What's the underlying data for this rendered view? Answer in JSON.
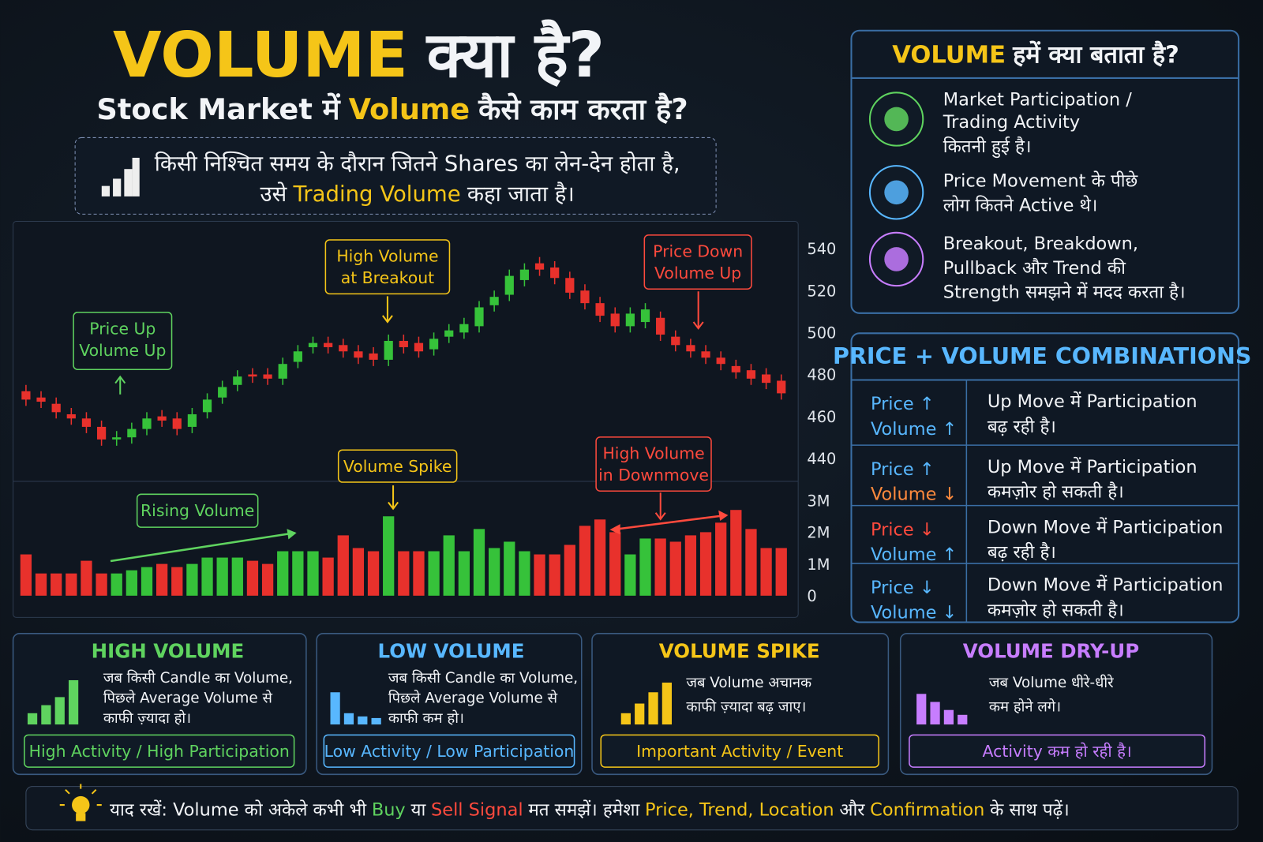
{
  "header": {
    "title": [
      "VOLUME",
      "क्या है?"
    ],
    "subtitle": [
      "Stock Market में",
      "Volume",
      "कैसे काम करता है?"
    ],
    "definition": [
      [
        "किसी निश्चित समय के दौरान जितने Shares का लेन-देन होता है,"
      ],
      [
        "उसे",
        "Trading Volume",
        "कहा जाता है।"
      ]
    ]
  },
  "chart_data": {
    "type": "candlestick",
    "open": [
      472,
      469,
      466,
      461,
      459,
      455,
      449,
      450,
      454,
      460,
      459,
      455,
      462,
      469,
      475,
      480,
      480,
      478,
      486,
      493,
      495,
      494,
      491,
      490,
      487,
      496,
      495,
      492,
      498,
      500,
      503,
      513,
      518,
      525,
      533,
      531,
      526,
      520,
      514,
      509,
      503,
      505,
      507,
      498,
      494,
      491,
      488,
      484,
      482,
      480,
      477
    ],
    "high": [
      475,
      472,
      469,
      464,
      462,
      458,
      453,
      457,
      462,
      463,
      462,
      464,
      471,
      477,
      482,
      483,
      483,
      488,
      494,
      498,
      498,
      497,
      494,
      493,
      499,
      499,
      498,
      500,
      504,
      507,
      515,
      520,
      530,
      533,
      536,
      534,
      529,
      523,
      517,
      512,
      512,
      514,
      510,
      501,
      497,
      494,
      491,
      487,
      485,
      483,
      480
    ],
    "low": [
      465,
      464,
      459,
      456,
      452,
      446,
      446,
      447,
      451,
      455,
      451,
      452,
      459,
      466,
      472,
      476,
      475,
      475,
      483,
      490,
      490,
      488,
      485,
      484,
      484,
      490,
      488,
      489,
      495,
      497,
      500,
      510,
      515,
      522,
      527,
      523,
      516,
      511,
      505,
      500,
      500,
      502,
      496,
      491,
      488,
      485,
      482,
      478,
      475,
      473,
      468
    ],
    "close": [
      468,
      467,
      462,
      459,
      455,
      449,
      450,
      454,
      459,
      458,
      454,
      461,
      468,
      474,
      479,
      479,
      478,
      485,
      491,
      495,
      493,
      491,
      488,
      487,
      496,
      493,
      491,
      497,
      501,
      504,
      512,
      517,
      527,
      530,
      530,
      526,
      519,
      514,
      508,
      503,
      509,
      511,
      499,
      494,
      491,
      488,
      485,
      481,
      478,
      476,
      471
    ],
    "up_color": "#36c23a",
    "down_color": "#e8312c",
    "ylim": [
      429,
      553
    ],
    "yticks": [
      440,
      460,
      480,
      500,
      520,
      540
    ],
    "volume": {
      "values": [
        1300000,
        700000,
        700000,
        700000,
        1100000,
        700000,
        700000,
        800000,
        900000,
        1000000,
        900000,
        1000000,
        1200000,
        1200000,
        1200000,
        1100000,
        1000000,
        1400000,
        1400000,
        1400000,
        1200000,
        1900000,
        1500000,
        1400000,
        2500000,
        1400000,
        1400000,
        1400000,
        1900000,
        1400000,
        2100000,
        1500000,
        1700000,
        1400000,
        1300000,
        1300000,
        1600000,
        2200000,
        2400000,
        2000000,
        1300000,
        1800000,
        1800000,
        1700000,
        1900000,
        2000000,
        2300000,
        2700000,
        2100000,
        1500000,
        1500000
      ],
      "ylim": [
        0,
        3600000
      ],
      "yticks": [
        0,
        {
          "value": 1000000,
          "label": "1M"
        },
        {
          "value": 2000000,
          "label": "2M"
        },
        {
          "value": 3000000,
          "label": "3M"
        }
      ]
    },
    "annotations": [
      {
        "text": [
          "Price Up",
          "Volume Up"
        ],
        "color": "#5fd35f"
      },
      {
        "text": [
          "High Volume",
          "at Breakout"
        ],
        "color": "#f5c518"
      },
      {
        "text": [
          "Price Down",
          "Volume Up"
        ],
        "color": "#ff4a3d"
      },
      {
        "text": [
          "Volume Spike"
        ],
        "color": "#f5c518"
      },
      {
        "text": [
          "High Volume",
          "in Downmove"
        ],
        "color": "#ff4a3d"
      },
      {
        "text": [
          "Rising Volume"
        ],
        "color": "#5fd35f"
      }
    ]
  },
  "insights": {
    "title": [
      "VOLUME",
      "हमें क्या बताता है?"
    ],
    "items": [
      [
        "Market Participation /",
        "Trading Activity",
        "कितनी हुई है।"
      ],
      [
        "Price Movement के पीछे",
        "लोग कितने Active थे।"
      ],
      [
        "Breakout, Breakdown,",
        "Pullback और Trend की",
        "Strength समझने में मदद करता है।"
      ]
    ]
  },
  "combinations": {
    "title": "PRICE + VOLUME COMBINATIONS",
    "rows": [
      {
        "price": "Price ↑",
        "volume": "Volume ↑",
        "meaning": [
          "Up Move में Participation",
          "बढ़ रही है।"
        ]
      },
      {
        "price": "Price ↑",
        "volume": "Volume ↓",
        "meaning": [
          "Up Move में Participation",
          "कमज़ोर हो सकती है।"
        ]
      },
      {
        "price": "Price ↓",
        "volume": "Volume ↑",
        "meaning": [
          "Down Move में Participation",
          "बढ़ रही है।"
        ]
      },
      {
        "price": "Price ↓",
        "volume": "Volume ↓",
        "meaning": [
          "Down Move में Participation",
          "कमज़ोर हो सकती है।"
        ]
      }
    ]
  },
  "cards": [
    {
      "title": "HIGH VOLUME",
      "text": [
        "जब किसी Candle का Volume,",
        "पिछले Average Volume से",
        "काफी ज़्यादा हो।"
      ],
      "tag": "High Activity / High Participation"
    },
    {
      "title": "LOW VOLUME",
      "text": [
        "जब किसी Candle का Volume,",
        "पिछले Average Volume से",
        "काफी कम हो।"
      ],
      "tag": "Low Activity / Low Participation"
    },
    {
      "title": "VOLUME SPIKE",
      "text": [
        "जब Volume अचानक",
        "काफी ज़्यादा बढ़ जाए।"
      ],
      "tag": "Important Activity / Event"
    },
    {
      "title": "VOLUME DRY-UP",
      "text": [
        "जब Volume धीरे-धीरे",
        "कम होने लगे।"
      ],
      "tag": "Activity कम हो रही है।"
    }
  ],
  "footer": [
    "याद रखें: Volume को अकेले कभी भी",
    "Buy",
    "या",
    "Sell Signal",
    "मत समझें। हमेशा",
    "Price, Trend, Location",
    "और",
    "Confirmation",
    "के साथ पढ़ें।"
  ]
}
